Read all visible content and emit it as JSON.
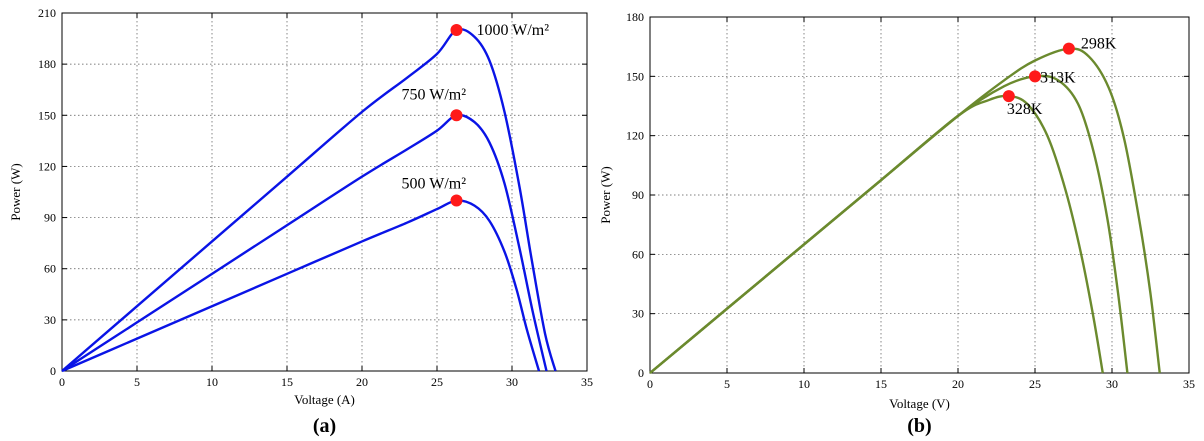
{
  "chart_data": [
    {
      "type": "line",
      "caption": "(a)",
      "xlabel": "Voltage (A)",
      "ylabel": "Power (W)",
      "xlim": [
        0,
        35
      ],
      "ylim": [
        0,
        210
      ],
      "xticks": [
        0,
        5,
        10,
        15,
        20,
        25,
        30,
        35
      ],
      "yticks": [
        0,
        30,
        60,
        90,
        120,
        150,
        180,
        210
      ],
      "grid": true,
      "line_color": "#0a14e6",
      "marker_color": "#ff1a1a",
      "series": [
        {
          "x": [
            0,
            5,
            10,
            15,
            20,
            23,
            25,
            26.3,
            27.5,
            28.5,
            29.5,
            30.5,
            31.3,
            32.2,
            32.9
          ],
          "y": [
            0,
            38,
            76,
            114,
            152,
            172,
            186,
            200,
            196,
            182,
            152,
            108,
            66,
            22,
            0
          ],
          "marker": {
            "x": 26.3,
            "y": 200,
            "label": "1000 W/m²"
          }
        },
        {
          "x": [
            0,
            5,
            10,
            15,
            20,
            23,
            25,
            26.3,
            27.5,
            28.5,
            29.5,
            30.5,
            31.4,
            32.3
          ],
          "y": [
            0,
            28.5,
            57,
            85.5,
            114,
            130,
            141,
            150,
            146,
            134,
            110,
            72,
            34,
            0
          ],
          "marker": {
            "x": 26.3,
            "y": 150,
            "label": "750 W/m²"
          }
        },
        {
          "x": [
            0,
            5,
            10,
            15,
            20,
            23,
            25,
            26.3,
            27.5,
            28.5,
            29.5,
            30.3,
            31.0,
            31.8
          ],
          "y": [
            0,
            19,
            38,
            57,
            76,
            87,
            95,
            100,
            97,
            88,
            70,
            48,
            24,
            0
          ],
          "marker": {
            "x": 26.3,
            "y": 100,
            "label": "500 W/m²"
          }
        }
      ]
    },
    {
      "type": "line",
      "caption": "(b)",
      "xlabel": "Voltage (V)",
      "ylabel": "Power (W)",
      "xlim": [
        0,
        35
      ],
      "ylim": [
        0,
        180
      ],
      "xticks": [
        0,
        5,
        10,
        15,
        20,
        25,
        30,
        35
      ],
      "yticks": [
        0,
        30,
        60,
        90,
        120,
        150,
        180
      ],
      "grid": true,
      "line_color": "#6b8a2e",
      "marker_color": "#ff1a1a",
      "series": [
        {
          "x": [
            0,
            5,
            10,
            15,
            20,
            23,
            25,
            27.2,
            28.5,
            29.8,
            30.8,
            31.8,
            32.5,
            33.1
          ],
          "y": [
            0,
            32.5,
            65,
            97.5,
            130,
            148,
            158,
            164,
            160,
            144,
            118,
            76,
            40,
            0
          ],
          "marker": {
            "x": 27.2,
            "y": 164,
            "label": "298K"
          }
        },
        {
          "x": [
            0,
            5,
            10,
            15,
            20,
            23,
            25,
            26.5,
            27.8,
            28.8,
            29.7,
            30.4,
            31.0
          ],
          "y": [
            0,
            32.5,
            65,
            97.5,
            130,
            145,
            150,
            148,
            136,
            112,
            78,
            40,
            0
          ],
          "marker": {
            "x": 25,
            "y": 150,
            "label": "313K"
          }
        },
        {
          "x": [
            0,
            5,
            10,
            15,
            20,
            22,
            23.3,
            24.5,
            25.8,
            27,
            28,
            28.8,
            29.4
          ],
          "y": [
            0,
            32.5,
            65,
            97.5,
            130,
            138,
            140,
            136,
            120,
            92,
            60,
            28,
            0
          ],
          "marker": {
            "x": 23.3,
            "y": 140,
            "label": "328K"
          }
        }
      ]
    }
  ]
}
